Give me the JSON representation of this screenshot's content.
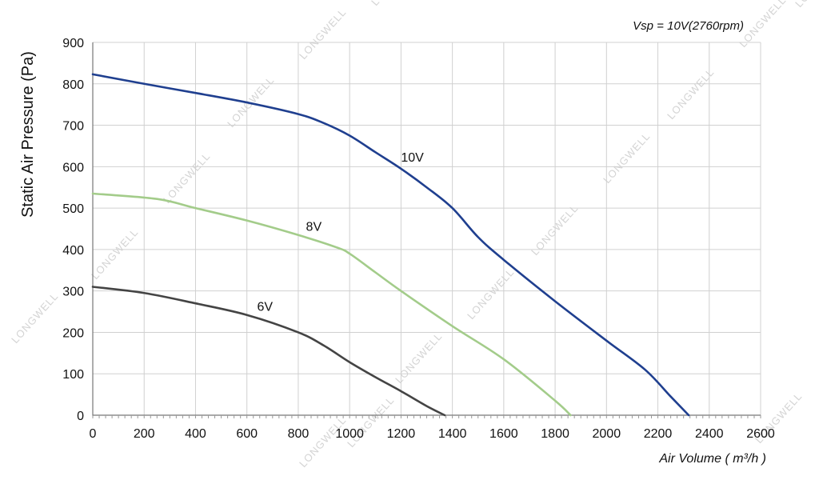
{
  "chart_data": {
    "type": "line",
    "title": "",
    "note": "Vsp = 10V(2760rpm)",
    "xlabel": "Air Volume ( m³/h )",
    "ylabel": "Static Air Pressure  (Pa)",
    "xlim": [
      0,
      2600
    ],
    "ylim": [
      0,
      900
    ],
    "xticks": [
      0,
      200,
      400,
      600,
      800,
      1000,
      1200,
      1400,
      1600,
      1800,
      2000,
      2200,
      2400,
      2600
    ],
    "yticks": [
      0,
      100,
      200,
      300,
      400,
      500,
      600,
      700,
      800,
      900
    ],
    "grid": true,
    "watermark": "LONGWELL",
    "series": [
      {
        "name": "10V",
        "color": "#1f3f8f",
        "x": [
          0,
          200,
          400,
          600,
          800,
          900,
          1000,
          1100,
          1200,
          1300,
          1400,
          1500,
          1600,
          1800,
          2000,
          2150,
          2250,
          2320
        ],
        "y": [
          823,
          800,
          778,
          755,
          727,
          705,
          675,
          635,
          595,
          550,
          500,
          430,
          375,
          275,
          180,
          110,
          45,
          0
        ]
      },
      {
        "name": "8V",
        "color": "#a3cc8a",
        "x": [
          0,
          250,
          400,
          600,
          800,
          950,
          1000,
          1100,
          1200,
          1400,
          1600,
          1800,
          1860
        ],
        "y": [
          535,
          522,
          500,
          470,
          435,
          405,
          390,
          345,
          300,
          215,
          135,
          35,
          0
        ]
      },
      {
        "name": "6V",
        "color": "#444444",
        "x": [
          0,
          200,
          400,
          600,
          800,
          900,
          1000,
          1100,
          1200,
          1300,
          1370
        ],
        "y": [
          310,
          295,
          270,
          242,
          200,
          168,
          128,
          92,
          58,
          22,
          0
        ]
      }
    ]
  }
}
